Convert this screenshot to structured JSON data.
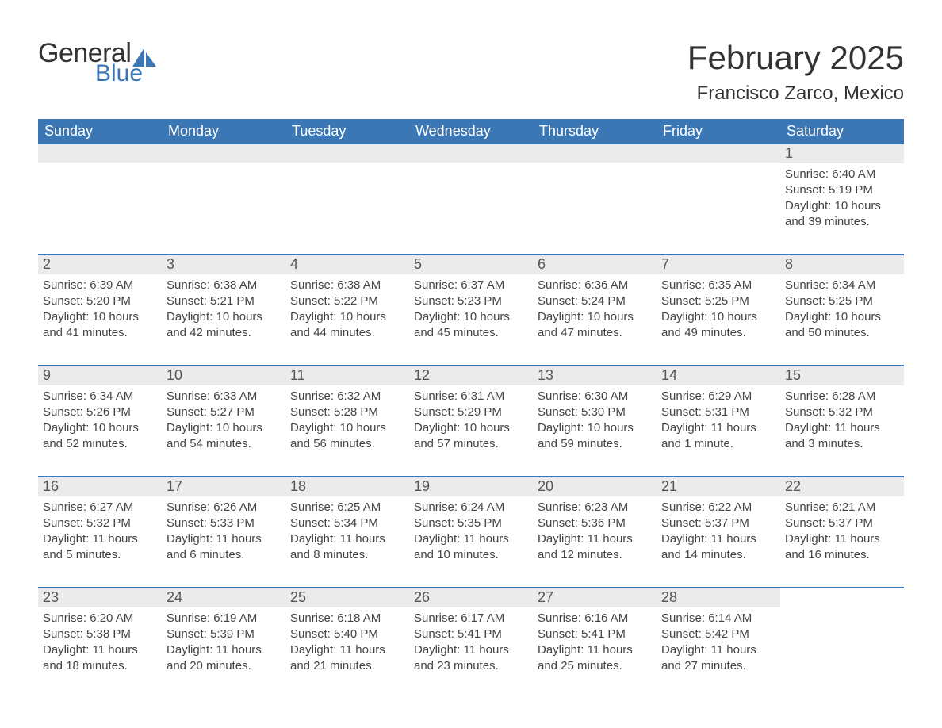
{
  "logo": {
    "word1": "General",
    "word2": "Blue"
  },
  "title": "February 2025",
  "location": "Francisco Zarco, Mexico",
  "colors": {
    "header_bg": "#3b76b5",
    "header_text": "#ffffff",
    "daynum_bg": "#ebebeb",
    "daynum_text": "#555555",
    "body_text": "#444444",
    "page_bg": "#ffffff"
  },
  "days_of_week": [
    "Sunday",
    "Monday",
    "Tuesday",
    "Wednesday",
    "Thursday",
    "Friday",
    "Saturday"
  ],
  "weeks": [
    [
      null,
      null,
      null,
      null,
      null,
      null,
      {
        "n": "1",
        "sunrise": "Sunrise: 6:40 AM",
        "sunset": "Sunset: 5:19 PM",
        "dl1": "Daylight: 10 hours",
        "dl2": "and 39 minutes."
      }
    ],
    [
      {
        "n": "2",
        "sunrise": "Sunrise: 6:39 AM",
        "sunset": "Sunset: 5:20 PM",
        "dl1": "Daylight: 10 hours",
        "dl2": "and 41 minutes."
      },
      {
        "n": "3",
        "sunrise": "Sunrise: 6:38 AM",
        "sunset": "Sunset: 5:21 PM",
        "dl1": "Daylight: 10 hours",
        "dl2": "and 42 minutes."
      },
      {
        "n": "4",
        "sunrise": "Sunrise: 6:38 AM",
        "sunset": "Sunset: 5:22 PM",
        "dl1": "Daylight: 10 hours",
        "dl2": "and 44 minutes."
      },
      {
        "n": "5",
        "sunrise": "Sunrise: 6:37 AM",
        "sunset": "Sunset: 5:23 PM",
        "dl1": "Daylight: 10 hours",
        "dl2": "and 45 minutes."
      },
      {
        "n": "6",
        "sunrise": "Sunrise: 6:36 AM",
        "sunset": "Sunset: 5:24 PM",
        "dl1": "Daylight: 10 hours",
        "dl2": "and 47 minutes."
      },
      {
        "n": "7",
        "sunrise": "Sunrise: 6:35 AM",
        "sunset": "Sunset: 5:25 PM",
        "dl1": "Daylight: 10 hours",
        "dl2": "and 49 minutes."
      },
      {
        "n": "8",
        "sunrise": "Sunrise: 6:34 AM",
        "sunset": "Sunset: 5:25 PM",
        "dl1": "Daylight: 10 hours",
        "dl2": "and 50 minutes."
      }
    ],
    [
      {
        "n": "9",
        "sunrise": "Sunrise: 6:34 AM",
        "sunset": "Sunset: 5:26 PM",
        "dl1": "Daylight: 10 hours",
        "dl2": "and 52 minutes."
      },
      {
        "n": "10",
        "sunrise": "Sunrise: 6:33 AM",
        "sunset": "Sunset: 5:27 PM",
        "dl1": "Daylight: 10 hours",
        "dl2": "and 54 minutes."
      },
      {
        "n": "11",
        "sunrise": "Sunrise: 6:32 AM",
        "sunset": "Sunset: 5:28 PM",
        "dl1": "Daylight: 10 hours",
        "dl2": "and 56 minutes."
      },
      {
        "n": "12",
        "sunrise": "Sunrise: 6:31 AM",
        "sunset": "Sunset: 5:29 PM",
        "dl1": "Daylight: 10 hours",
        "dl2": "and 57 minutes."
      },
      {
        "n": "13",
        "sunrise": "Sunrise: 6:30 AM",
        "sunset": "Sunset: 5:30 PM",
        "dl1": "Daylight: 10 hours",
        "dl2": "and 59 minutes."
      },
      {
        "n": "14",
        "sunrise": "Sunrise: 6:29 AM",
        "sunset": "Sunset: 5:31 PM",
        "dl1": "Daylight: 11 hours",
        "dl2": "and 1 minute."
      },
      {
        "n": "15",
        "sunrise": "Sunrise: 6:28 AM",
        "sunset": "Sunset: 5:32 PM",
        "dl1": "Daylight: 11 hours",
        "dl2": "and 3 minutes."
      }
    ],
    [
      {
        "n": "16",
        "sunrise": "Sunrise: 6:27 AM",
        "sunset": "Sunset: 5:32 PM",
        "dl1": "Daylight: 11 hours",
        "dl2": "and 5 minutes."
      },
      {
        "n": "17",
        "sunrise": "Sunrise: 6:26 AM",
        "sunset": "Sunset: 5:33 PM",
        "dl1": "Daylight: 11 hours",
        "dl2": "and 6 minutes."
      },
      {
        "n": "18",
        "sunrise": "Sunrise: 6:25 AM",
        "sunset": "Sunset: 5:34 PM",
        "dl1": "Daylight: 11 hours",
        "dl2": "and 8 minutes."
      },
      {
        "n": "19",
        "sunrise": "Sunrise: 6:24 AM",
        "sunset": "Sunset: 5:35 PM",
        "dl1": "Daylight: 11 hours",
        "dl2": "and 10 minutes."
      },
      {
        "n": "20",
        "sunrise": "Sunrise: 6:23 AM",
        "sunset": "Sunset: 5:36 PM",
        "dl1": "Daylight: 11 hours",
        "dl2": "and 12 minutes."
      },
      {
        "n": "21",
        "sunrise": "Sunrise: 6:22 AM",
        "sunset": "Sunset: 5:37 PM",
        "dl1": "Daylight: 11 hours",
        "dl2": "and 14 minutes."
      },
      {
        "n": "22",
        "sunrise": "Sunrise: 6:21 AM",
        "sunset": "Sunset: 5:37 PM",
        "dl1": "Daylight: 11 hours",
        "dl2": "and 16 minutes."
      }
    ],
    [
      {
        "n": "23",
        "sunrise": "Sunrise: 6:20 AM",
        "sunset": "Sunset: 5:38 PM",
        "dl1": "Daylight: 11 hours",
        "dl2": "and 18 minutes."
      },
      {
        "n": "24",
        "sunrise": "Sunrise: 6:19 AM",
        "sunset": "Sunset: 5:39 PM",
        "dl1": "Daylight: 11 hours",
        "dl2": "and 20 minutes."
      },
      {
        "n": "25",
        "sunrise": "Sunrise: 6:18 AM",
        "sunset": "Sunset: 5:40 PM",
        "dl1": "Daylight: 11 hours",
        "dl2": "and 21 minutes."
      },
      {
        "n": "26",
        "sunrise": "Sunrise: 6:17 AM",
        "sunset": "Sunset: 5:41 PM",
        "dl1": "Daylight: 11 hours",
        "dl2": "and 23 minutes."
      },
      {
        "n": "27",
        "sunrise": "Sunrise: 6:16 AM",
        "sunset": "Sunset: 5:41 PM",
        "dl1": "Daylight: 11 hours",
        "dl2": "and 25 minutes."
      },
      {
        "n": "28",
        "sunrise": "Sunrise: 6:14 AM",
        "sunset": "Sunset: 5:42 PM",
        "dl1": "Daylight: 11 hours",
        "dl2": "and 27 minutes."
      },
      null
    ]
  ]
}
